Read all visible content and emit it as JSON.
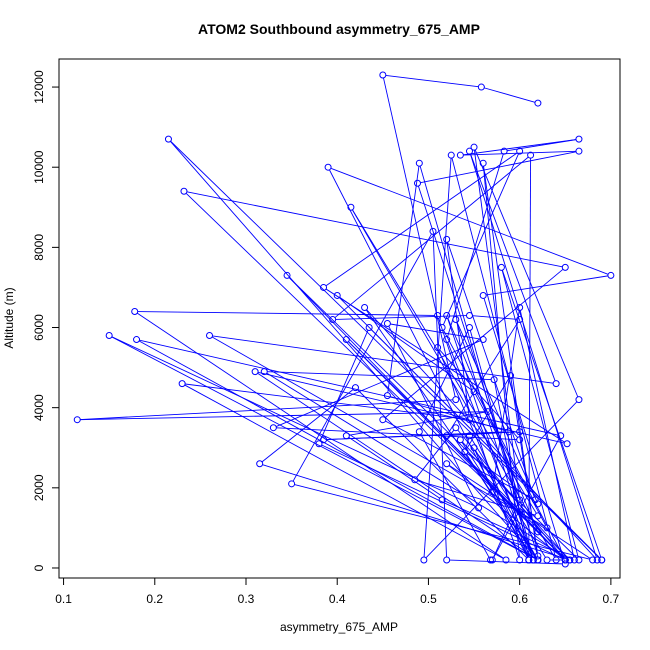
{
  "chart_data": {
    "type": "line",
    "title": "ATOM2 Southbound asymmetry_675_AMP",
    "xlabel": "asymmetry_675_AMP",
    "ylabel": "Altitude (m)",
    "xlim": [
      0.095,
      0.71
    ],
    "ylim": [
      -250,
      12700
    ],
    "xticks": [
      0.1,
      0.2,
      0.3,
      0.4,
      0.5,
      0.6,
      0.7
    ],
    "xtick_labels": [
      "0.1",
      "0.2",
      "0.3",
      "0.4",
      "0.5",
      "0.6",
      "0.7"
    ],
    "yticks": [
      0,
      2000,
      4000,
      6000,
      8000,
      10000,
      12000
    ],
    "ytick_labels": [
      "0",
      "2000",
      "4000",
      "6000",
      "8000",
      "10000",
      "12000"
    ],
    "grid": false,
    "series": [
      {
        "color": "#0000ff",
        "marker": "open-circle",
        "points": [
          [
            0.568,
            200
          ],
          [
            0.49,
            3400
          ],
          [
            0.545,
            6000
          ],
          [
            0.615,
            200
          ],
          [
            0.52,
            5700
          ],
          [
            0.583,
            10400
          ],
          [
            0.665,
            10700
          ],
          [
            0.535,
            10300
          ],
          [
            0.665,
            10400
          ],
          [
            0.488,
            9600
          ],
          [
            0.62,
            300
          ],
          [
            0.59,
            4800
          ],
          [
            0.54,
            2900
          ],
          [
            0.62,
            1600
          ],
          [
            0.53,
            6200
          ],
          [
            0.615,
            200
          ],
          [
            0.54,
            2900
          ],
          [
            0.545,
            3300
          ],
          [
            0.63,
            200
          ],
          [
            0.65,
            200
          ],
          [
            0.6,
            1400
          ],
          [
            0.49,
            10100
          ],
          [
            0.455,
            4300
          ],
          [
            0.588,
            3400
          ],
          [
            0.385,
            3200
          ],
          [
            0.6,
            3400
          ],
          [
            0.52,
            3300
          ],
          [
            0.6,
            6200
          ],
          [
            0.545,
            6300
          ],
          [
            0.395,
            6200
          ],
          [
            0.612,
            10300
          ],
          [
            0.61,
            200
          ],
          [
            0.572,
            4700
          ],
          [
            0.32,
            4900
          ],
          [
            0.655,
            200
          ],
          [
            0.41,
            5700
          ],
          [
            0.65,
            200
          ],
          [
            0.345,
            7300
          ],
          [
            0.665,
            200
          ],
          [
            0.58,
            7500
          ],
          [
            0.69,
            200
          ],
          [
            0.435,
            6000
          ],
          [
            0.38,
            3100
          ],
          [
            0.65,
            200
          ],
          [
            0.53,
            3500
          ],
          [
            0.485,
            2200
          ],
          [
            0.62,
            1300
          ],
          [
            0.415,
            9000
          ],
          [
            0.64,
            200
          ],
          [
            0.525,
            10300
          ],
          [
            0.495,
            200
          ],
          [
            0.665,
            4200
          ],
          [
            0.55,
            10500
          ],
          [
            0.6,
            1700
          ],
          [
            0.57,
            200
          ],
          [
            0.645,
            3300
          ],
          [
            0.18,
            5700
          ],
          [
            0.62,
            200
          ],
          [
            0.31,
            4900
          ],
          [
            0.652,
            3100
          ],
          [
            0.385,
            7000
          ],
          [
            0.6,
            10400
          ],
          [
            0.515,
            6000
          ],
          [
            0.65,
            200
          ],
          [
            0.52,
            2600
          ],
          [
            0.68,
            200
          ],
          [
            0.35,
            2100
          ],
          [
            0.505,
            8400
          ],
          [
            0.52,
            200
          ],
          [
            0.65,
            100
          ],
          [
            0.56,
            6800
          ],
          [
            0.7,
            7300
          ],
          [
            0.39,
            10000
          ],
          [
            0.61,
            200
          ],
          [
            0.52,
            6300
          ],
          [
            0.62,
            900
          ],
          [
            0.232,
            9400
          ],
          [
            0.65,
            7500
          ],
          [
            0.45,
            3700
          ],
          [
            0.617,
            1700
          ],
          [
            0.52,
            8200
          ],
          [
            0.545,
            3700
          ],
          [
            0.23,
            4600
          ],
          [
            0.585,
            200
          ],
          [
            0.178,
            6400
          ],
          [
            0.51,
            6300
          ],
          [
            0.6,
            200
          ],
          [
            0.56,
            10100
          ],
          [
            0.62,
            200
          ],
          [
            0.215,
            10700
          ],
          [
            0.69,
            200
          ],
          [
            0.4,
            6800
          ],
          [
            0.55,
            4400
          ],
          [
            0.63,
            1000
          ],
          [
            0.26,
            5800
          ],
          [
            0.64,
            4600
          ],
          [
            0.545,
            10400
          ],
          [
            0.685,
            200
          ],
          [
            0.43,
            6500
          ],
          [
            0.62,
            200
          ],
          [
            0.535,
            3200
          ],
          [
            0.655,
            200
          ],
          [
            0.315,
            2600
          ],
          [
            0.42,
            4500
          ],
          [
            0.61,
            200
          ],
          [
            0.51,
            5500
          ],
          [
            0.6,
            3200
          ],
          [
            0.33,
            3500
          ],
          [
            0.56,
            5700
          ],
          [
            0.455,
            6100
          ],
          [
            0.555,
            1500
          ],
          [
            0.15,
            5800
          ],
          [
            0.62,
            200
          ],
          [
            0.55,
            3000
          ],
          [
            0.57,
            1900
          ],
          [
            0.6,
            6500
          ],
          [
            0.66,
            200
          ],
          [
            0.515,
            1700
          ],
          [
            0.41,
            3300
          ],
          [
            0.565,
            3900
          ],
          [
            0.115,
            3700
          ],
          [
            0.53,
            4200
          ],
          [
            0.45,
            12300
          ],
          [
            0.558,
            12000
          ],
          [
            0.62,
            11600
          ]
        ]
      }
    ]
  }
}
